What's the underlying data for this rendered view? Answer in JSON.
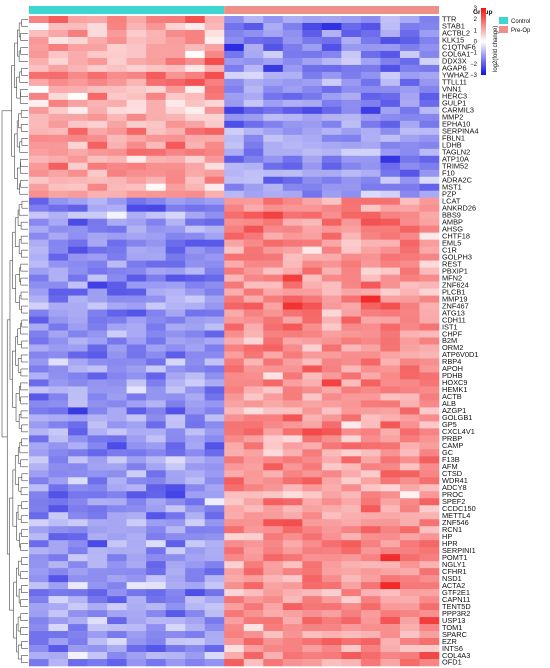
{
  "chart_data": {
    "type": "heatmap",
    "title": "",
    "xlabel": "",
    "ylabel": "",
    "groups": [
      {
        "name": "Control",
        "count": 10,
        "color": "#3ed6d0"
      },
      {
        "name": "Pre-Op",
        "count": 11,
        "color": "#ef8f89"
      }
    ],
    "group_legend_title": "Group",
    "color_scale": {
      "label": "log2(fold change)",
      "min": -3,
      "max": 3,
      "ticks": [
        3,
        2,
        1,
        0,
        -1,
        -2,
        -3
      ],
      "low_color": "#1010e0",
      "mid_color": "#ffffff",
      "high_color": "#f01010"
    },
    "rows": [
      "TTR",
      "STAB1",
      "ACTBL2",
      "KLK15",
      "C1QTNF6",
      "COL6A1",
      "DDX3X",
      "AGAP6",
      "YWHAZ",
      "TTLL11",
      "VNN1",
      "HERC3",
      "GULP1",
      "CARMIL3",
      "MMP2",
      "EPHA10",
      "SERPINA4",
      "FBLN1",
      "LDHB",
      "TAGLN2",
      "ATP10A",
      "TRIM52",
      "F10",
      "ADRA2C",
      "MST1",
      "PZP",
      "LCAT",
      "ANKRD26",
      "BBS9",
      "AMBP",
      "AHSG",
      "CHTF18",
      "EML5",
      "C1R",
      "GOLPH3",
      "REST",
      "PBXIP1",
      "MFN2",
      "ZNF624",
      "PLCB1",
      "MMP19",
      "ZNF467",
      "ATG13",
      "CDH11",
      "IST1",
      "CHPF",
      "B2M",
      "ORM2",
      "ATP6V0D1",
      "RBP4",
      "APOH",
      "PDHB",
      "HOXC9",
      "HEMK1",
      "ACTB",
      "ALB",
      "AZGP1",
      "GOLGB1",
      "GP5",
      "CXCL4V1",
      "PRBP",
      "CAMP",
      "GC",
      "F13B",
      "AFM",
      "CTSD",
      "WDR41",
      "ADCY8",
      "PROC",
      "SPEF2",
      "CCDC150",
      "METTL4",
      "ZNF546",
      "RCN1",
      "HP",
      "HPR",
      "SERPINI1",
      "POMT1",
      "NGLY1",
      "CFHR1",
      "NSD1",
      "ACTA2",
      "GTF2E1",
      "CAPN11",
      "TENT5D",
      "PPP3R2",
      "USP13",
      "TOM1",
      "SPARC",
      "EZR",
      "INTS6",
      "COL4A3",
      "OFD1"
    ],
    "cluster_a_rows": 26,
    "pattern": {
      "top_block": {
        "Control": 1.1,
        "Pre-Op": -1.4
      },
      "bottom_block": {
        "Control": -1.3,
        "Pre-Op": 1.4
      }
    }
  }
}
